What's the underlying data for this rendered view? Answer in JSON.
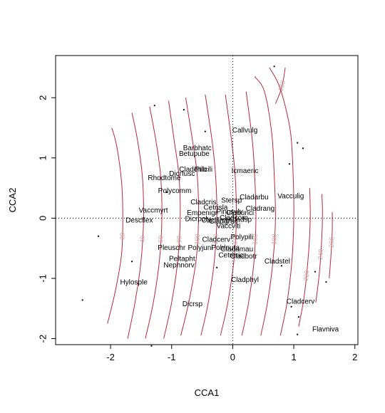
{
  "chart_data": {
    "type": "scatter",
    "xlabel": "CCA1",
    "ylabel": "CCA2",
    "xlim": [
      -2.9,
      2.05
    ],
    "ylim": [
      -2.1,
      2.7
    ],
    "x_ticks": [
      -2,
      -1,
      0,
      1,
      2
    ],
    "y_ticks": [
      -2,
      -1,
      0,
      1,
      2
    ],
    "reference_lines": {
      "x": 0,
      "y": 0,
      "style": "dotted"
    },
    "contour_color": "#b52b3a",
    "contour_label_color": "#d3a3a3",
    "species": [
      {
        "label": "Callvulg",
        "x": 0.2,
        "y": 1.45
      },
      {
        "label": "Barbhatc",
        "x": -0.58,
        "y": 1.16
      },
      {
        "label": "Betupube",
        "x": -0.63,
        "y": 1.06
      },
      {
        "label": "Cladchlo",
        "x": -0.65,
        "y": 0.8
      },
      {
        "label": "Ptilcili",
        "x": -0.48,
        "y": 0.8
      },
      {
        "label": "Dicrfusc",
        "x": -0.83,
        "y": 0.73
      },
      {
        "label": "Icmaeric",
        "x": 0.2,
        "y": 0.78
      },
      {
        "label": "Rhodtome",
        "x": -1.12,
        "y": 0.66
      },
      {
        "label": "Polycomm",
        "x": -0.95,
        "y": 0.45
      },
      {
        "label": "Cladcris",
        "x": -0.48,
        "y": 0.26
      },
      {
        "label": "Stersp",
        "x": -0.02,
        "y": 0.29
      },
      {
        "label": "Cladarbu",
        "x": 0.35,
        "y": 0.34
      },
      {
        "label": "Vacculig",
        "x": 0.95,
        "y": 0.36
      },
      {
        "label": "Cetrisla",
        "x": -0.28,
        "y": 0.17
      },
      {
        "label": "Cladrang",
        "x": 0.45,
        "y": 0.15
      },
      {
        "label": "Vaccmyrt",
        "x": -1.3,
        "y": 0.12
      },
      {
        "label": "Empenigr",
        "x": -0.5,
        "y": 0.08
      },
      {
        "label": "Pinusylv",
        "x": -0.05,
        "y": 0.1
      },
      {
        "label": "Cladunci",
        "x": 0.12,
        "y": 0.08
      },
      {
        "label": "Descflex",
        "x": -1.53,
        "y": -0.04
      },
      {
        "label": "Dicrpoly",
        "x": -0.57,
        "y": -0.02
      },
      {
        "label": "Cladfimb",
        "x": -0.28,
        "y": -0.04
      },
      {
        "label": "Cladcorn",
        "x": 0.02,
        "y": 0.0
      },
      {
        "label": "Cladgrac",
        "x": -0.15,
        "y": -0.06
      },
      {
        "label": "Cladsp",
        "x": 0.13,
        "y": -0.03
      },
      {
        "label": "Vaccviti",
        "x": -0.07,
        "y": -0.14
      },
      {
        "label": "Polypili",
        "x": 0.15,
        "y": -0.32
      },
      {
        "label": "Cladcerv",
        "x": -0.27,
        "y": -0.36
      },
      {
        "label": "Pleuschr",
        "x": -1.0,
        "y": -0.5
      },
      {
        "label": "Polyjuni",
        "x": -0.53,
        "y": -0.5
      },
      {
        "label": "Pohlnuta",
        "x": -0.12,
        "y": -0.5
      },
      {
        "label": "Cladamau",
        "x": 0.07,
        "y": -0.52
      },
      {
        "label": "Cetreric",
        "x": -0.03,
        "y": -0.62
      },
      {
        "label": "Cladbotr",
        "x": 0.18,
        "y": -0.64
      },
      {
        "label": "Peltapht",
        "x": -0.83,
        "y": -0.68
      },
      {
        "label": "Nephnorv",
        "x": -0.88,
        "y": -0.79
      },
      {
        "label": "Cladstel",
        "x": 0.73,
        "y": -0.72
      },
      {
        "label": "Cladphyl",
        "x": 0.2,
        "y": -1.03
      },
      {
        "label": "Hylosple",
        "x": -1.62,
        "y": -1.07
      },
      {
        "label": "Dicrsp",
        "x": -0.66,
        "y": -1.43
      },
      {
        "label": "Cladcerv",
        "x": 1.11,
        "y": -1.39
      },
      {
        "label": "Flavniva",
        "x": 1.52,
        "y": -1.85
      }
    ],
    "sites": [
      {
        "x": 0.68,
        "y": 2.52
      },
      {
        "x": -1.28,
        "y": 1.87
      },
      {
        "x": -0.8,
        "y": 1.8
      },
      {
        "x": -0.45,
        "y": 1.44
      },
      {
        "x": 1.06,
        "y": 1.25
      },
      {
        "x": 1.15,
        "y": 1.16
      },
      {
        "x": 0.93,
        "y": 0.9
      },
      {
        "x": -1.08,
        "y": 0.43
      },
      {
        "x": -2.2,
        "y": -0.3
      },
      {
        "x": -1.65,
        "y": -0.72
      },
      {
        "x": 0.8,
        "y": -0.79
      },
      {
        "x": -0.26,
        "y": -0.82
      },
      {
        "x": 1.35,
        "y": -0.89
      },
      {
        "x": 1.53,
        "y": -1.06
      },
      {
        "x": -2.46,
        "y": -1.36
      },
      {
        "x": 0.96,
        "y": -1.47
      },
      {
        "x": 1.08,
        "y": -1.64
      },
      {
        "x": 1.06,
        "y": -1.93
      },
      {
        "x": -1.33,
        "y": -2.12
      }
    ],
    "contours": [
      {
        "level": "20",
        "labeled": true,
        "points": [
          [
            -2.05,
            -1.75
          ],
          [
            -1.92,
            -1.2
          ],
          [
            -1.82,
            -0.6
          ],
          [
            -1.8,
            0.0
          ],
          [
            -1.82,
            0.6
          ],
          [
            -1.9,
            1.2
          ],
          [
            -1.98,
            1.5
          ]
        ]
      },
      {
        "level": "40",
        "labeled": true,
        "points": [
          [
            -1.72,
            -2.0
          ],
          [
            -1.6,
            -1.4
          ],
          [
            -1.5,
            -0.7
          ],
          [
            -1.46,
            0.0
          ],
          [
            -1.48,
            0.7
          ],
          [
            -1.56,
            1.3
          ],
          [
            -1.65,
            1.75
          ]
        ]
      },
      {
        "level": "60",
        "labeled": true,
        "points": [
          [
            -1.43,
            -2.0
          ],
          [
            -1.3,
            -1.4
          ],
          [
            -1.2,
            -0.7
          ],
          [
            -1.16,
            0.0
          ],
          [
            -1.18,
            0.7
          ],
          [
            -1.26,
            1.3
          ],
          [
            -1.36,
            1.85
          ]
        ]
      },
      {
        "level": "80",
        "labeled": true,
        "points": [
          [
            -1.13,
            -2.0
          ],
          [
            -1.0,
            -1.4
          ],
          [
            -0.9,
            -0.7
          ],
          [
            -0.86,
            0.0
          ],
          [
            -0.88,
            0.7
          ],
          [
            -0.96,
            1.3
          ],
          [
            -1.05,
            1.95
          ]
        ]
      },
      {
        "level": "100",
        "labeled": true,
        "points": [
          [
            -0.85,
            -1.95
          ],
          [
            -0.72,
            -1.4
          ],
          [
            -0.6,
            -0.7
          ],
          [
            -0.56,
            0.0
          ],
          [
            -0.58,
            0.7
          ],
          [
            -0.66,
            1.3
          ],
          [
            -0.77,
            2.0
          ]
        ]
      },
      {
        "level": "120",
        "labeled": true,
        "points": [
          [
            -0.52,
            -1.95
          ],
          [
            -0.4,
            -1.4
          ],
          [
            -0.3,
            -0.7
          ],
          [
            -0.26,
            0.0
          ],
          [
            -0.28,
            0.7
          ],
          [
            -0.34,
            1.3
          ],
          [
            -0.45,
            2.05
          ]
        ]
      },
      {
        "level": "140",
        "labeled": true,
        "points": [
          [
            -0.2,
            -1.95
          ],
          [
            -0.08,
            -1.4
          ],
          [
            0.02,
            -0.7
          ],
          [
            0.06,
            0.0
          ],
          [
            0.04,
            0.7
          ],
          [
            -0.02,
            1.3
          ],
          [
            -0.12,
            2.05
          ]
        ]
      },
      {
        "level": "160",
        "labeled": true,
        "points": [
          [
            0.15,
            -1.95
          ],
          [
            0.26,
            -1.4
          ],
          [
            0.35,
            -0.7
          ],
          [
            0.38,
            0.0
          ],
          [
            0.36,
            0.7
          ],
          [
            0.32,
            1.3
          ],
          [
            0.22,
            2.1
          ]
        ]
      },
      {
        "level": "180",
        "labeled": true,
        "points": [
          [
            0.46,
            -1.95
          ],
          [
            0.57,
            -1.4
          ],
          [
            0.66,
            -0.7
          ],
          [
            0.7,
            0.0
          ],
          [
            0.68,
            0.7
          ],
          [
            0.64,
            1.4
          ],
          [
            0.52,
            2.1
          ],
          [
            0.36,
            2.35
          ]
        ]
      },
      {
        "level": "200",
        "labeled": false,
        "points": [
          [
            0.78,
            -1.95
          ],
          [
            0.89,
            -1.4
          ],
          [
            0.97,
            -0.7
          ],
          [
            1.0,
            0.0
          ],
          [
            0.99,
            0.7
          ],
          [
            0.95,
            1.4
          ],
          [
            0.85,
            1.9
          ],
          [
            0.74,
            2.25
          ],
          [
            0.6,
            2.5
          ]
        ]
      },
      {
        "level": "220",
        "labeled": true,
        "points": [
          [
            1.08,
            -1.8
          ],
          [
            1.17,
            -1.3
          ],
          [
            1.24,
            -0.6
          ],
          [
            1.27,
            0.0
          ],
          [
            1.26,
            0.5
          ]
        ]
      },
      {
        "level": "240",
        "labeled": true,
        "points": [
          [
            1.36,
            -1.4
          ],
          [
            1.42,
            -0.9
          ],
          [
            1.46,
            -0.3
          ],
          [
            1.47,
            0.1
          ],
          [
            1.46,
            0.4
          ]
        ]
      },
      {
        "level": "260",
        "labeled": true,
        "points": [
          [
            1.58,
            -1.0
          ],
          [
            1.61,
            -0.6
          ],
          [
            1.63,
            -0.2
          ],
          [
            1.63,
            0.1
          ]
        ]
      },
      {
        "level": "260",
        "labeled": true,
        "points": [
          [
            0.86,
            2.5
          ],
          [
            0.83,
            2.3
          ],
          [
            0.78,
            2.1
          ],
          [
            0.7,
            1.9
          ]
        ]
      }
    ]
  }
}
